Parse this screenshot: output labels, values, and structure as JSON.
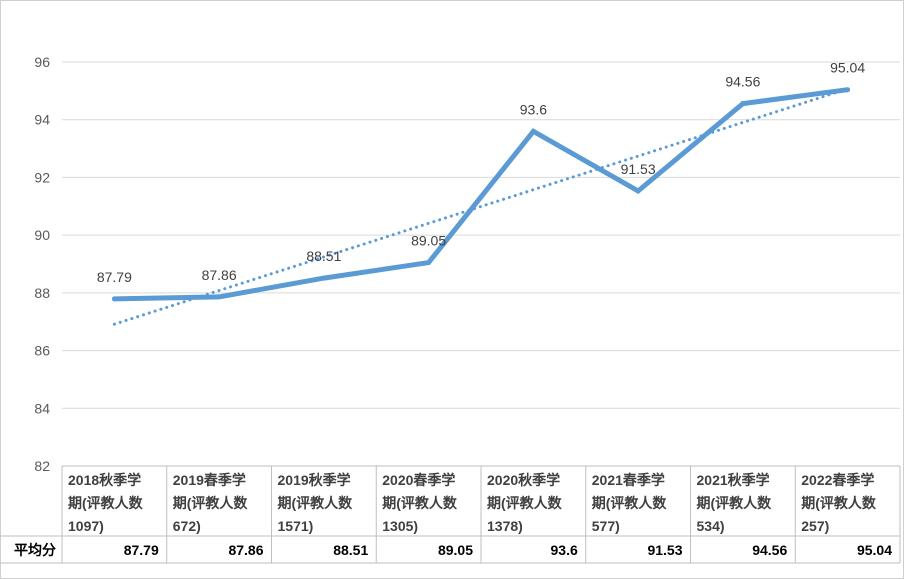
{
  "chart_data": {
    "type": "line",
    "categories": [
      "2018秋季学期(评教人数1097)",
      "2019春季学期(评教人数672)",
      "2019秋季学期(评教人数1571)",
      "2020春季学期(评教人数1305)",
      "2020秋季学期(评教人数1378)",
      "2021春季学期(评教人数577)",
      "2021秋季学期(评教人数534)",
      "2022春季学期(评教人数257)"
    ],
    "category_lines": [
      [
        "2018秋季学",
        "期(评教人数",
        "1097)"
      ],
      [
        "2019春季学",
        "期(评教人数",
        "672)"
      ],
      [
        "2019秋季学",
        "期(评教人数",
        "1571)"
      ],
      [
        "2020春季学",
        "期(评教人数",
        "1305)"
      ],
      [
        "2020秋季学",
        "期(评教人数",
        "1378)"
      ],
      [
        "2021春季学",
        "期(评教人数",
        "577)"
      ],
      [
        "2021秋季学",
        "期(评教人数",
        "534)"
      ],
      [
        "2022春季学",
        "期(评教人数",
        "257)"
      ]
    ],
    "series": [
      {
        "name": "平均分",
        "values": [
          87.79,
          87.86,
          88.51,
          89.05,
          93.6,
          91.53,
          94.56,
          95.04
        ],
        "labels": [
          "87.79",
          "87.86",
          "88.51",
          "89.05",
          "93.6",
          "91.53",
          "94.56",
          "95.04"
        ],
        "color": "#5b9bd5"
      }
    ],
    "trendline": {
      "type": "linear",
      "style": "dotted",
      "color": "#5b9bd5"
    },
    "y_ticks": [
      "82",
      "84",
      "86",
      "88",
      "90",
      "92",
      "94",
      "96"
    ],
    "ylim": [
      82,
      96
    ],
    "grid": true,
    "legend": "data-table",
    "title": "",
    "xlabel": "",
    "ylabel": "",
    "table_row_label": "平均分"
  }
}
